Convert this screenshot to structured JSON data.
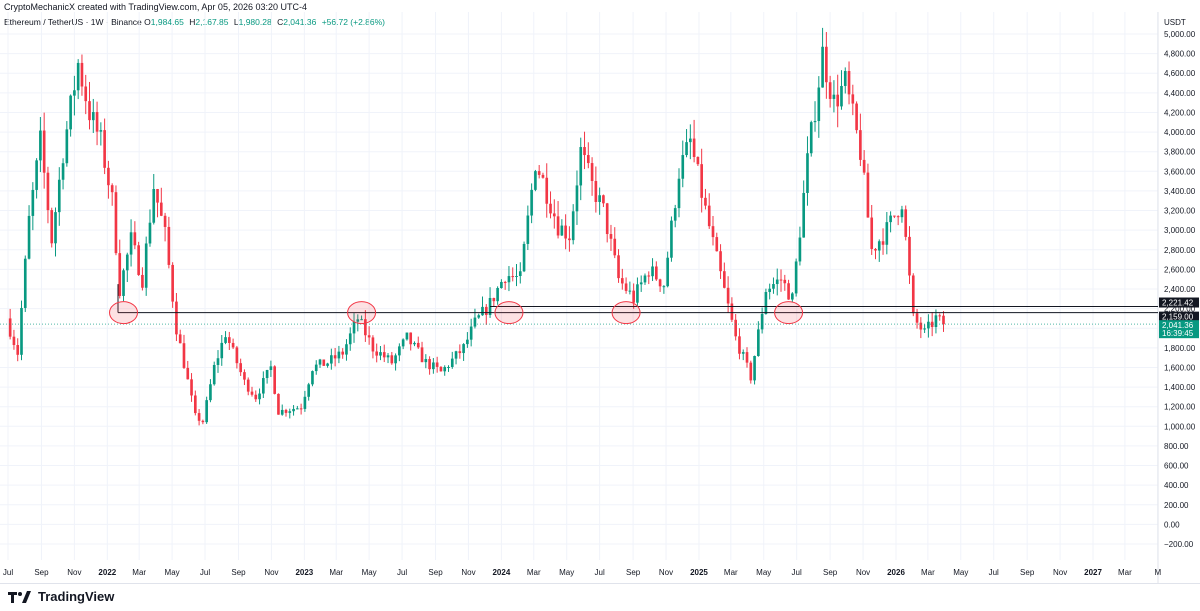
{
  "header": {
    "caption": "CryptoMechanicX created with TradingView.com, Apr 05, 2026 03:20 UTC-4"
  },
  "legend": {
    "symbol": "Ethereum / TetherUS · 1W · Binance",
    "open_label": "O",
    "open": "1,984.65",
    "high_label": "H",
    "high": "2,167.85",
    "low_label": "L",
    "low": "1,980.28",
    "close_label": "C",
    "close": "2,041.36",
    "change": "+56.72 (+2.86%)"
  },
  "footer": {
    "brand": "TradingView"
  },
  "colors": {
    "up": "#089981",
    "down": "#f23645",
    "grid": "#f0f3fa",
    "level": "#131722",
    "current": "#089981",
    "highlight": "#f23645"
  },
  "chart_data": {
    "type": "candlestick",
    "currency": "USDT",
    "ylim": [
      -300,
      5200
    ],
    "y_ticks": [
      5000,
      4800,
      4600,
      4400,
      4200,
      4000,
      3800,
      3600,
      3400,
      3200,
      3000,
      2800,
      2600,
      2400,
      2200,
      2000,
      1800,
      1600,
      1400,
      1200,
      1000,
      800,
      600,
      400,
      200,
      0,
      -200
    ],
    "y_tick_labels": [
      "5,000.00",
      "4,800.00",
      "4,600.00",
      "4,400.00",
      "4,200.00",
      "4,000.00",
      "3,800.00",
      "3,600.00",
      "3,400.00",
      "3,200.00",
      "3,000.00",
      "2,800.00",
      "2,600.00",
      "2,400.00",
      "2,200.00",
      "2,000.00",
      "1,800.00",
      "1,600.00",
      "1,400.00",
      "1,200.00",
      "1,000.00",
      "800.00",
      "600.00",
      "400.00",
      "200.00",
      "0.00",
      "−200.00"
    ],
    "x_ticks": [
      {
        "date": "2021-07",
        "label": "Jul"
      },
      {
        "date": "2021-09",
        "label": "Sep"
      },
      {
        "date": "2021-11",
        "label": "Nov"
      },
      {
        "date": "2022-01",
        "label": "2022",
        "year": true
      },
      {
        "date": "2022-03",
        "label": "Mar"
      },
      {
        "date": "2022-05",
        "label": "May"
      },
      {
        "date": "2022-07",
        "label": "Jul"
      },
      {
        "date": "2022-09",
        "label": "Sep"
      },
      {
        "date": "2022-11",
        "label": "Nov"
      },
      {
        "date": "2023-01",
        "label": "2023",
        "year": true
      },
      {
        "date": "2023-03",
        "label": "Mar"
      },
      {
        "date": "2023-05",
        "label": "May"
      },
      {
        "date": "2023-07",
        "label": "Jul"
      },
      {
        "date": "2023-09",
        "label": "Sep"
      },
      {
        "date": "2023-11",
        "label": "Nov"
      },
      {
        "date": "2024-01",
        "label": "2024",
        "year": true
      },
      {
        "date": "2024-03",
        "label": "Mar"
      },
      {
        "date": "2024-05",
        "label": "May"
      },
      {
        "date": "2024-07",
        "label": "Jul"
      },
      {
        "date": "2024-09",
        "label": "Sep"
      },
      {
        "date": "2024-11",
        "label": "Nov"
      },
      {
        "date": "2025-01",
        "label": "2025",
        "year": true
      },
      {
        "date": "2025-03",
        "label": "Mar"
      },
      {
        "date": "2025-05",
        "label": "May"
      },
      {
        "date": "2025-07",
        "label": "Jul"
      },
      {
        "date": "2025-09",
        "label": "Sep"
      },
      {
        "date": "2025-11",
        "label": "Nov"
      },
      {
        "date": "2026-01",
        "label": "2026",
        "year": true
      },
      {
        "date": "2026-03",
        "label": "Mar"
      },
      {
        "date": "2026-05",
        "label": "May"
      },
      {
        "date": "2026-07",
        "label": "Jul"
      },
      {
        "date": "2026-09",
        "label": "Sep"
      },
      {
        "date": "2026-11",
        "label": "Nov"
      },
      {
        "date": "2027-01",
        "label": "2027",
        "year": true
      },
      {
        "date": "2027-03",
        "label": "Mar"
      },
      {
        "date": "2027-05",
        "label": "M"
      }
    ],
    "weekly_close_path": [
      [
        "2021-06-28",
        2100
      ],
      [
        "2021-07-19",
        1750
      ],
      [
        "2021-08-09",
        3100
      ],
      [
        "2021-08-30",
        3900
      ],
      [
        "2021-09-20",
        2900
      ],
      [
        "2021-10-11",
        3800
      ],
      [
        "2021-11-08",
        4700
      ],
      [
        "2021-11-29",
        4200
      ],
      [
        "2021-12-20",
        3900
      ],
      [
        "2022-01-10",
        3300
      ],
      [
        "2022-01-24",
        2400
      ],
      [
        "2022-02-14",
        2900
      ],
      [
        "2022-03-07",
        2500
      ],
      [
        "2022-03-28",
        3450
      ],
      [
        "2022-04-18",
        2950
      ],
      [
        "2022-05-09",
        2000
      ],
      [
        "2022-06-13",
        1100
      ],
      [
        "2022-06-27",
        1050
      ],
      [
        "2022-07-18",
        1600
      ],
      [
        "2022-08-08",
        1950
      ],
      [
        "2022-09-12",
        1450
      ],
      [
        "2022-10-03",
        1300
      ],
      [
        "2022-10-31",
        1600
      ],
      [
        "2022-11-14",
        1150
      ],
      [
        "2022-12-26",
        1200
      ],
      [
        "2023-01-16",
        1600
      ],
      [
        "2023-02-13",
        1650
      ],
      [
        "2023-03-13",
        1750
      ],
      [
        "2023-04-10",
        2100
      ],
      [
        "2023-05-08",
        1800
      ],
      [
        "2023-06-12",
        1650
      ],
      [
        "2023-07-10",
        1900
      ],
      [
        "2023-08-14",
        1650
      ],
      [
        "2023-09-11",
        1550
      ],
      [
        "2023-10-23",
        1800
      ],
      [
        "2023-11-13",
        2050
      ],
      [
        "2023-12-11",
        2250
      ],
      [
        "2024-01-08",
        2550
      ],
      [
        "2024-02-05",
        2500
      ],
      [
        "2024-03-04",
        3700
      ],
      [
        "2024-03-18",
        3500
      ],
      [
        "2024-04-15",
        3050
      ],
      [
        "2024-05-06",
        2950
      ],
      [
        "2024-05-27",
        3800
      ],
      [
        "2024-06-17",
        3450
      ],
      [
        "2024-07-08",
        3200
      ],
      [
        "2024-08-05",
        2500
      ],
      [
        "2024-09-02",
        2300
      ],
      [
        "2024-09-30",
        2600
      ],
      [
        "2024-10-28",
        2450
      ],
      [
        "2024-11-25",
        3600
      ],
      [
        "2024-12-16",
        3900
      ],
      [
        "2025-01-13",
        3200
      ],
      [
        "2025-02-03",
        2700
      ],
      [
        "2025-03-10",
        1900
      ],
      [
        "2025-04-07",
        1500
      ],
      [
        "2025-05-05",
        2400
      ],
      [
        "2025-06-02",
        2500
      ],
      [
        "2025-06-23",
        2300
      ],
      [
        "2025-07-21",
        3700
      ],
      [
        "2025-08-18",
        4800
      ],
      [
        "2025-09-08",
        4300
      ],
      [
        "2025-09-29",
        4500
      ],
      [
        "2025-10-27",
        3800
      ],
      [
        "2025-11-17",
        2800
      ],
      [
        "2025-12-15",
        3000
      ],
      [
        "2026-01-12",
        3300
      ],
      [
        "2026-02-02",
        2100
      ],
      [
        "2026-02-23",
        1950
      ],
      [
        "2026-03-16",
        2100
      ],
      [
        "2026-03-30",
        2041
      ]
    ],
    "levels": [
      {
        "price": 2221.42,
        "label": "2,221.42",
        "color": "#131722"
      },
      {
        "price": 2159.0,
        "label": "2,159.00",
        "color": "#131722"
      }
    ],
    "current_price": {
      "price": 2041.36,
      "label": "2,041.36",
      "countdown": "16:39:45"
    },
    "highlights": [
      {
        "date": "2022-01-31",
        "price": 2159
      },
      {
        "date": "2023-04-17",
        "price": 2159
      },
      {
        "date": "2024-01-15",
        "price": 2159
      },
      {
        "date": "2024-08-19",
        "price": 2159
      },
      {
        "date": "2025-06-16",
        "price": 2159
      }
    ]
  }
}
